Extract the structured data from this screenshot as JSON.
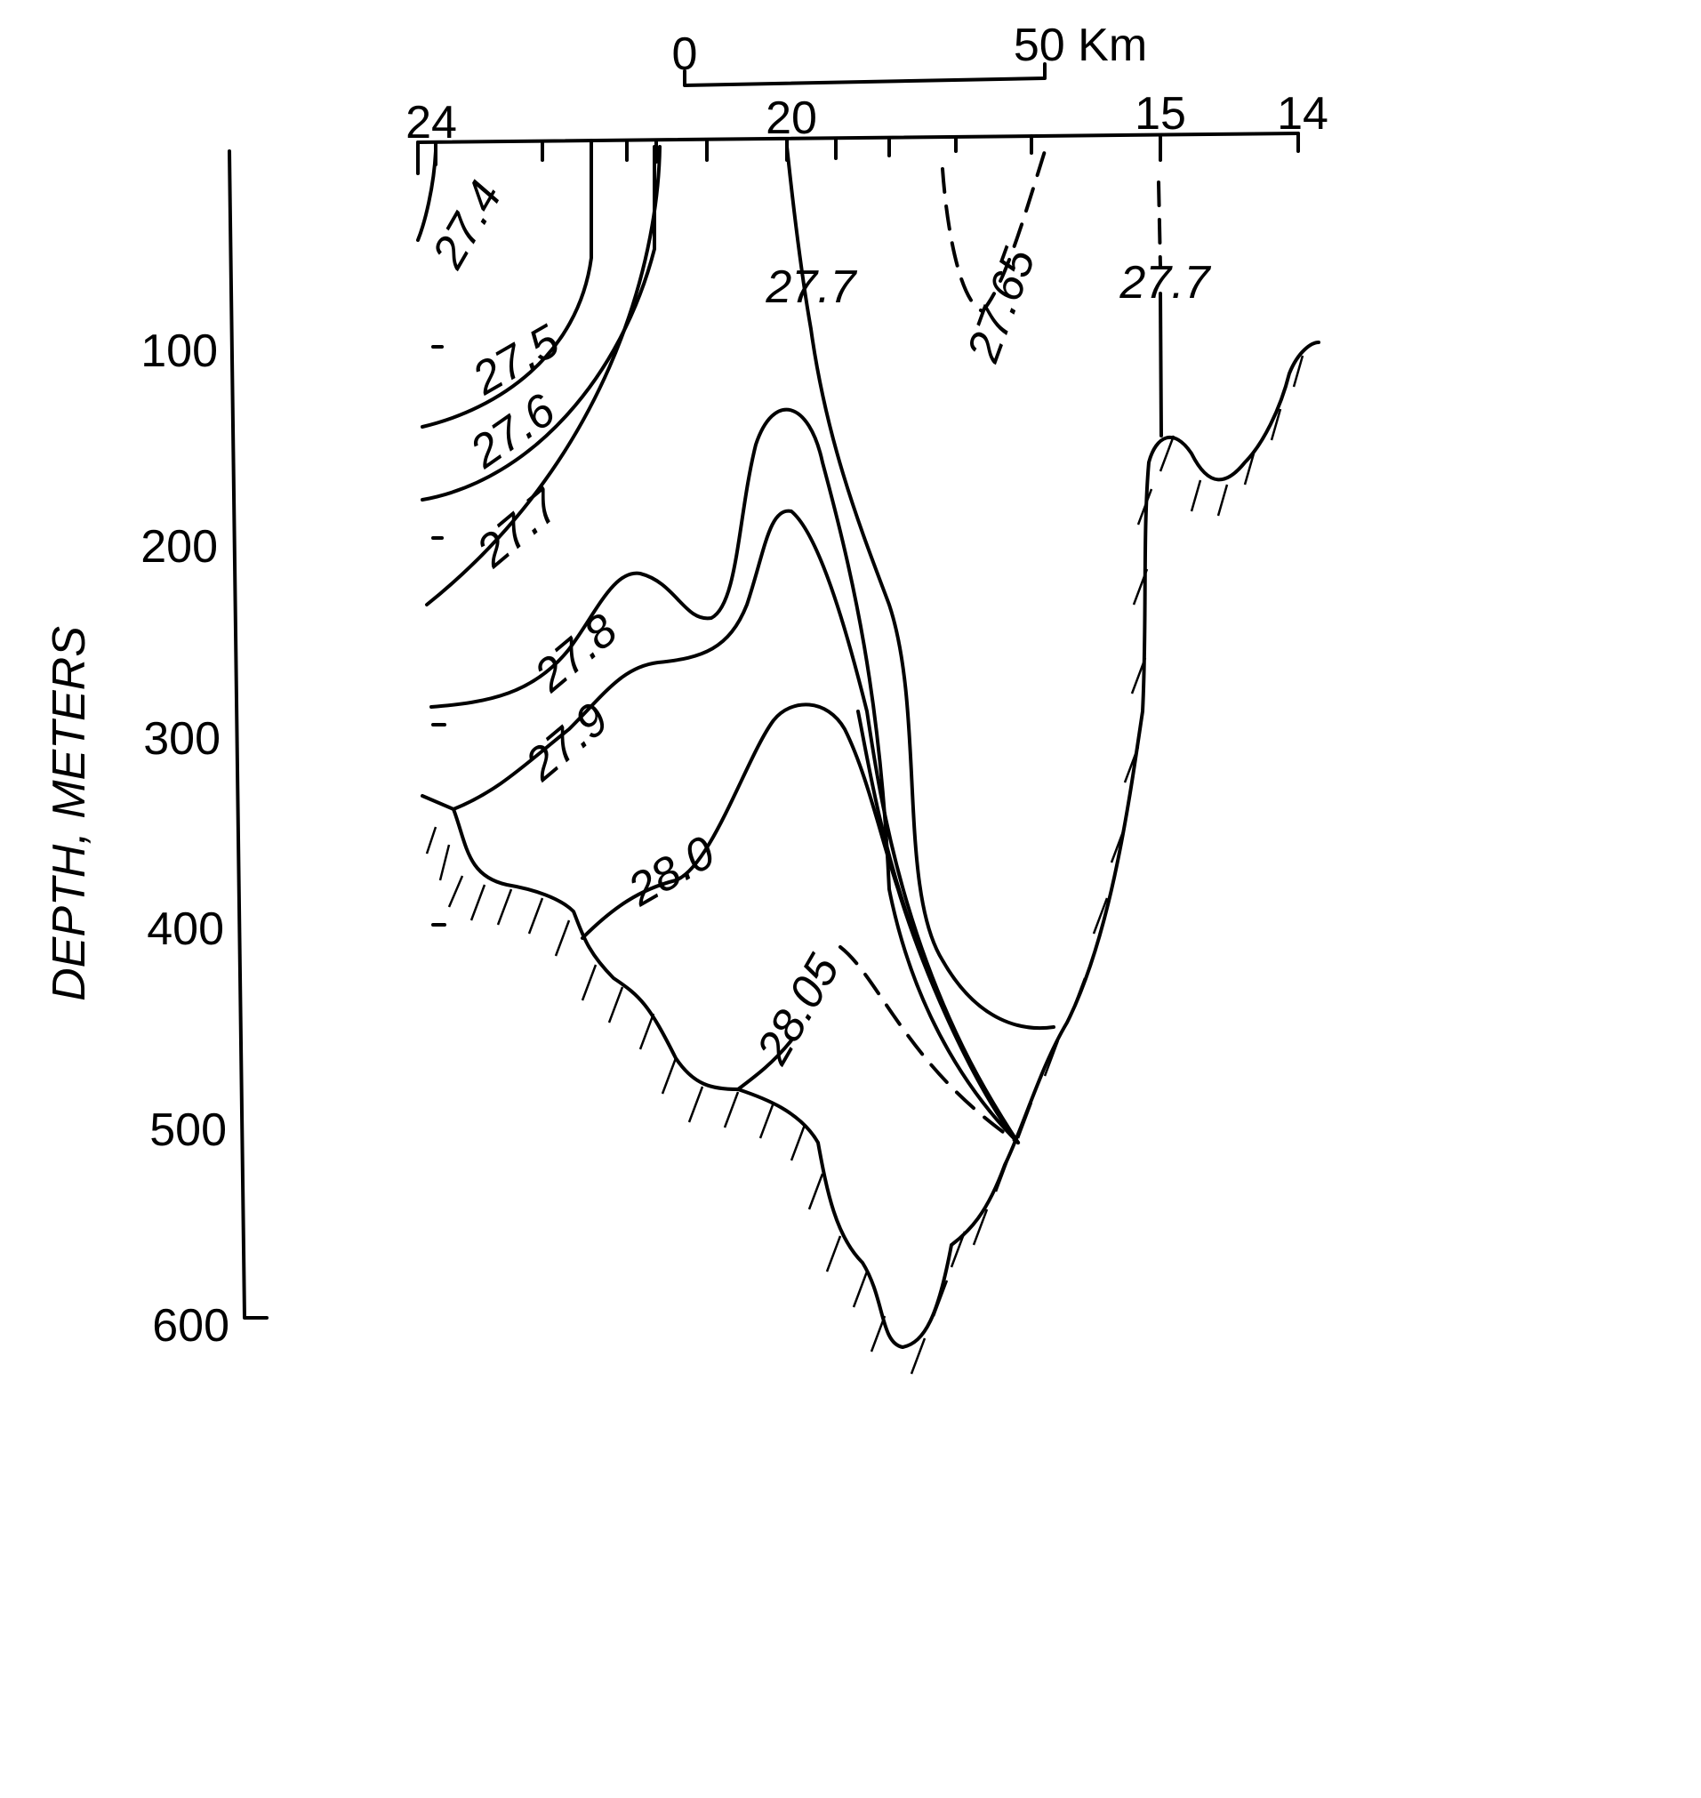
{
  "scale_bar": {
    "labels": [
      "0",
      "50 Km"
    ]
  },
  "stations": [
    "24",
    "20",
    "15",
    "14"
  ],
  "depth_axis": {
    "title": "DEPTH, METERS",
    "labels": [
      "100",
      "200",
      "300",
      "400",
      "500",
      "600"
    ]
  },
  "contours": [
    {
      "label": "27.4"
    },
    {
      "label": "27.5"
    },
    {
      "label": "27.6"
    },
    {
      "label": "27.7"
    },
    {
      "label": "27.7"
    },
    {
      "label": "27.65"
    },
    {
      "label": "27.7"
    },
    {
      "label": "27.8"
    },
    {
      "label": "27.9"
    },
    {
      "label": "28.0"
    },
    {
      "label": "28.05"
    }
  ]
}
